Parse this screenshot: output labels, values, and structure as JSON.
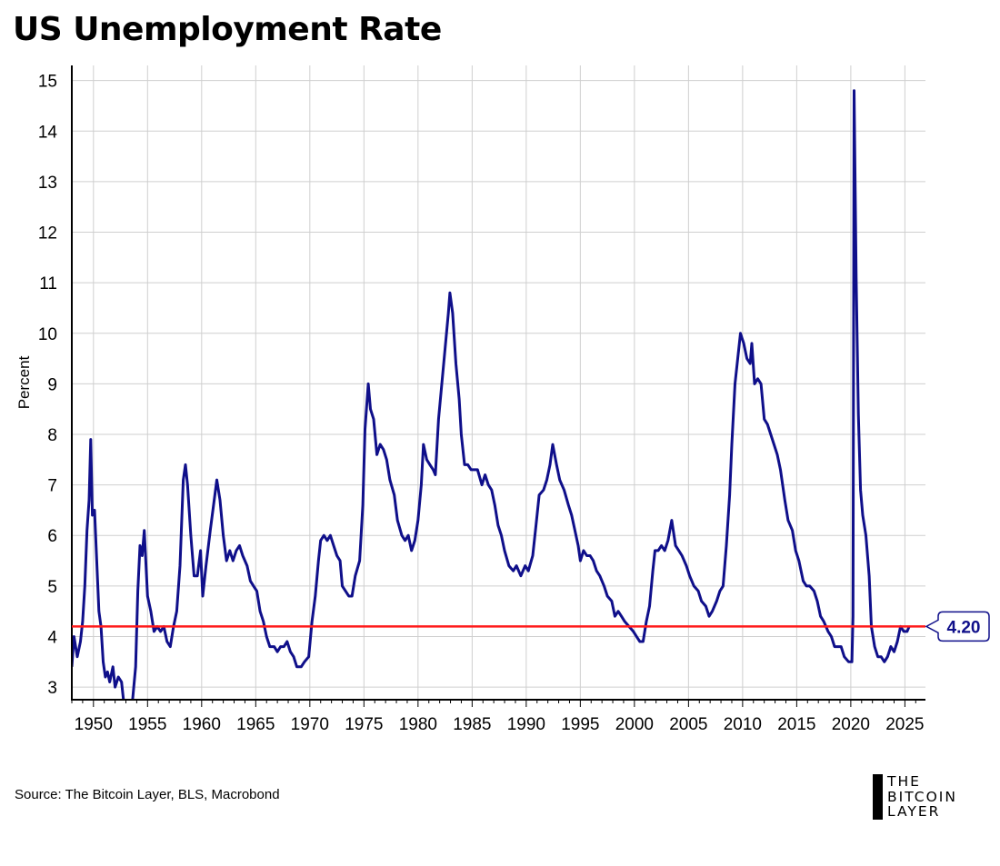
{
  "page": {
    "title": "US Unemployment Rate"
  },
  "footer": {
    "source": "Source: The Bitcoin Layer, BLS, Macrobond",
    "logo_lines": [
      "THE",
      "BITCOIN",
      "LAYER"
    ]
  },
  "chart_data": {
    "type": "line",
    "title": "US Unemployment Rate",
    "xlabel": "",
    "ylabel": "Percent",
    "xlim": [
      1948,
      2026.9
    ],
    "ylim": [
      2.75,
      15.3
    ],
    "x_ticks": [
      1950,
      1955,
      1960,
      1965,
      1970,
      1975,
      1980,
      1985,
      1990,
      1995,
      2000,
      2005,
      2010,
      2015,
      2020,
      2025
    ],
    "y_ticks": [
      3,
      4,
      5,
      6,
      7,
      8,
      9,
      10,
      11,
      12,
      13,
      14,
      15
    ],
    "grid": true,
    "colors": {
      "series": "#0f0f8a",
      "reference": "#ff1a1a",
      "label_border": "#0f0f8a",
      "label_text": "#0f0f8a"
    },
    "reference_line": {
      "value": 4.2,
      "label": "4.20"
    },
    "series": [
      {
        "values": [
          [
            1948.0,
            3.4
          ],
          [
            1948.2,
            4.0
          ],
          [
            1948.5,
            3.6
          ],
          [
            1948.8,
            3.9
          ],
          [
            1949.0,
            4.3
          ],
          [
            1949.2,
            5.0
          ],
          [
            1949.4,
            6.1
          ],
          [
            1949.6,
            6.7
          ],
          [
            1949.75,
            7.9
          ],
          [
            1949.9,
            6.4
          ],
          [
            1950.1,
            6.5
          ],
          [
            1950.3,
            5.5
          ],
          [
            1950.5,
            4.5
          ],
          [
            1950.7,
            4.2
          ],
          [
            1950.9,
            3.5
          ],
          [
            1951.1,
            3.2
          ],
          [
            1951.3,
            3.3
          ],
          [
            1951.5,
            3.1
          ],
          [
            1951.8,
            3.4
          ],
          [
            1952.0,
            3.0
          ],
          [
            1952.3,
            3.2
          ],
          [
            1952.6,
            3.1
          ],
          [
            1952.8,
            2.7
          ],
          [
            1953.6,
            2.7
          ],
          [
            1953.9,
            3.4
          ],
          [
            1954.1,
            4.9
          ],
          [
            1954.3,
            5.8
          ],
          [
            1954.5,
            5.6
          ],
          [
            1954.7,
            6.1
          ],
          [
            1955.0,
            4.8
          ],
          [
            1955.3,
            4.5
          ],
          [
            1955.6,
            4.1
          ],
          [
            1955.9,
            4.2
          ],
          [
            1956.2,
            4.1
          ],
          [
            1956.5,
            4.2
          ],
          [
            1956.8,
            3.9
          ],
          [
            1957.1,
            3.8
          ],
          [
            1957.4,
            4.2
          ],
          [
            1957.7,
            4.5
          ],
          [
            1958.0,
            5.4
          ],
          [
            1958.3,
            7.1
          ],
          [
            1958.5,
            7.4
          ],
          [
            1958.7,
            7.0
          ],
          [
            1959.0,
            6.0
          ],
          [
            1959.3,
            5.2
          ],
          [
            1959.6,
            5.2
          ],
          [
            1959.9,
            5.7
          ],
          [
            1960.1,
            4.8
          ],
          [
            1960.4,
            5.4
          ],
          [
            1960.8,
            6.1
          ],
          [
            1961.1,
            6.6
          ],
          [
            1961.4,
            7.1
          ],
          [
            1961.7,
            6.7
          ],
          [
            1962.0,
            6.0
          ],
          [
            1962.3,
            5.5
          ],
          [
            1962.6,
            5.7
          ],
          [
            1962.9,
            5.5
          ],
          [
            1963.2,
            5.7
          ],
          [
            1963.5,
            5.8
          ],
          [
            1963.8,
            5.6
          ],
          [
            1964.2,
            5.4
          ],
          [
            1964.5,
            5.1
          ],
          [
            1964.8,
            5.0
          ],
          [
            1965.1,
            4.9
          ],
          [
            1965.4,
            4.5
          ],
          [
            1965.7,
            4.3
          ],
          [
            1966.0,
            4.0
          ],
          [
            1966.3,
            3.8
          ],
          [
            1966.7,
            3.8
          ],
          [
            1967.0,
            3.7
          ],
          [
            1967.3,
            3.8
          ],
          [
            1967.6,
            3.8
          ],
          [
            1967.9,
            3.9
          ],
          [
            1968.2,
            3.7
          ],
          [
            1968.5,
            3.6
          ],
          [
            1968.8,
            3.4
          ],
          [
            1969.2,
            3.4
          ],
          [
            1969.5,
            3.5
          ],
          [
            1969.9,
            3.6
          ],
          [
            1970.2,
            4.3
          ],
          [
            1970.5,
            4.8
          ],
          [
            1970.8,
            5.5
          ],
          [
            1971.0,
            5.9
          ],
          [
            1971.3,
            6.0
          ],
          [
            1971.6,
            5.9
          ],
          [
            1971.9,
            6.0
          ],
          [
            1972.2,
            5.8
          ],
          [
            1972.5,
            5.6
          ],
          [
            1972.8,
            5.5
          ],
          [
            1973.0,
            5.0
          ],
          [
            1973.3,
            4.9
          ],
          [
            1973.6,
            4.8
          ],
          [
            1973.9,
            4.8
          ],
          [
            1974.2,
            5.2
          ],
          [
            1974.6,
            5.5
          ],
          [
            1974.9,
            6.6
          ],
          [
            1975.1,
            8.1
          ],
          [
            1975.4,
            9.0
          ],
          [
            1975.6,
            8.5
          ],
          [
            1975.9,
            8.3
          ],
          [
            1976.2,
            7.6
          ],
          [
            1976.5,
            7.8
          ],
          [
            1976.8,
            7.7
          ],
          [
            1977.1,
            7.5
          ],
          [
            1977.4,
            7.1
          ],
          [
            1977.8,
            6.8
          ],
          [
            1978.1,
            6.3
          ],
          [
            1978.5,
            6.0
          ],
          [
            1978.8,
            5.9
          ],
          [
            1979.1,
            6.0
          ],
          [
            1979.4,
            5.7
          ],
          [
            1979.7,
            5.9
          ],
          [
            1980.0,
            6.3
          ],
          [
            1980.3,
            7.0
          ],
          [
            1980.5,
            7.8
          ],
          [
            1980.8,
            7.5
          ],
          [
            1981.1,
            7.4
          ],
          [
            1981.4,
            7.3
          ],
          [
            1981.6,
            7.2
          ],
          [
            1981.9,
            8.3
          ],
          [
            1982.2,
            9.0
          ],
          [
            1982.5,
            9.7
          ],
          [
            1982.8,
            10.4
          ],
          [
            1982.95,
            10.8
          ],
          [
            1983.2,
            10.4
          ],
          [
            1983.5,
            9.4
          ],
          [
            1983.8,
            8.7
          ],
          [
            1984.0,
            8.0
          ],
          [
            1984.3,
            7.4
          ],
          [
            1984.6,
            7.4
          ],
          [
            1984.9,
            7.3
          ],
          [
            1985.2,
            7.3
          ],
          [
            1985.5,
            7.3
          ],
          [
            1985.9,
            7.0
          ],
          [
            1986.2,
            7.2
          ],
          [
            1986.5,
            7.0
          ],
          [
            1986.8,
            6.9
          ],
          [
            1987.1,
            6.6
          ],
          [
            1987.4,
            6.2
          ],
          [
            1987.7,
            6.0
          ],
          [
            1988.0,
            5.7
          ],
          [
            1988.4,
            5.4
          ],
          [
            1988.8,
            5.3
          ],
          [
            1989.1,
            5.4
          ],
          [
            1989.5,
            5.2
          ],
          [
            1989.9,
            5.4
          ],
          [
            1990.2,
            5.3
          ],
          [
            1990.6,
            5.6
          ],
          [
            1990.9,
            6.2
          ],
          [
            1991.2,
            6.8
          ],
          [
            1991.6,
            6.9
          ],
          [
            1991.9,
            7.1
          ],
          [
            1992.2,
            7.4
          ],
          [
            1992.45,
            7.8
          ],
          [
            1992.8,
            7.4
          ],
          [
            1993.1,
            7.1
          ],
          [
            1993.5,
            6.9
          ],
          [
            1993.9,
            6.6
          ],
          [
            1994.2,
            6.4
          ],
          [
            1994.5,
            6.1
          ],
          [
            1994.8,
            5.8
          ],
          [
            1995.0,
            5.5
          ],
          [
            1995.3,
            5.7
          ],
          [
            1995.6,
            5.6
          ],
          [
            1995.9,
            5.6
          ],
          [
            1996.2,
            5.5
          ],
          [
            1996.5,
            5.3
          ],
          [
            1996.8,
            5.2
          ],
          [
            1997.2,
            5.0
          ],
          [
            1997.5,
            4.8
          ],
          [
            1997.9,
            4.7
          ],
          [
            1998.2,
            4.4
          ],
          [
            1998.5,
            4.5
          ],
          [
            1998.8,
            4.4
          ],
          [
            1999.1,
            4.3
          ],
          [
            1999.5,
            4.2
          ],
          [
            1999.9,
            4.1
          ],
          [
            2000.2,
            4.0
          ],
          [
            2000.5,
            3.9
          ],
          [
            2000.8,
            3.9
          ],
          [
            2001.1,
            4.3
          ],
          [
            2001.4,
            4.6
          ],
          [
            2001.7,
            5.3
          ],
          [
            2001.9,
            5.7
          ],
          [
            2002.2,
            5.7
          ],
          [
            2002.5,
            5.8
          ],
          [
            2002.8,
            5.7
          ],
          [
            2003.1,
            5.9
          ],
          [
            2003.45,
            6.3
          ],
          [
            2003.8,
            5.8
          ],
          [
            2004.1,
            5.7
          ],
          [
            2004.4,
            5.6
          ],
          [
            2004.8,
            5.4
          ],
          [
            2005.1,
            5.2
          ],
          [
            2005.5,
            5.0
          ],
          [
            2005.9,
            4.9
          ],
          [
            2006.2,
            4.7
          ],
          [
            2006.6,
            4.6
          ],
          [
            2006.9,
            4.4
          ],
          [
            2007.2,
            4.5
          ],
          [
            2007.6,
            4.7
          ],
          [
            2007.9,
            4.9
          ],
          [
            2008.2,
            5.0
          ],
          [
            2008.5,
            5.8
          ],
          [
            2008.8,
            6.8
          ],
          [
            2009.0,
            7.8
          ],
          [
            2009.3,
            9.0
          ],
          [
            2009.6,
            9.6
          ],
          [
            2009.8,
            10.0
          ],
          [
            2010.1,
            9.8
          ],
          [
            2010.4,
            9.5
          ],
          [
            2010.7,
            9.4
          ],
          [
            2010.85,
            9.8
          ],
          [
            2011.1,
            9.0
          ],
          [
            2011.4,
            9.1
          ],
          [
            2011.7,
            9.0
          ],
          [
            2012.0,
            8.3
          ],
          [
            2012.3,
            8.2
          ],
          [
            2012.6,
            8.0
          ],
          [
            2012.9,
            7.8
          ],
          [
            2013.2,
            7.6
          ],
          [
            2013.5,
            7.3
          ],
          [
            2013.9,
            6.7
          ],
          [
            2014.2,
            6.3
          ],
          [
            2014.6,
            6.1
          ],
          [
            2014.9,
            5.7
          ],
          [
            2015.2,
            5.5
          ],
          [
            2015.6,
            5.1
          ],
          [
            2015.9,
            5.0
          ],
          [
            2016.2,
            5.0
          ],
          [
            2016.6,
            4.9
          ],
          [
            2016.9,
            4.7
          ],
          [
            2017.2,
            4.4
          ],
          [
            2017.5,
            4.3
          ],
          [
            2017.9,
            4.1
          ],
          [
            2018.2,
            4.0
          ],
          [
            2018.5,
            3.8
          ],
          [
            2018.8,
            3.8
          ],
          [
            2019.1,
            3.8
          ],
          [
            2019.4,
            3.6
          ],
          [
            2019.8,
            3.5
          ],
          [
            2020.1,
            3.5
          ],
          [
            2020.2,
            4.4
          ],
          [
            2020.3,
            14.8
          ],
          [
            2020.5,
            11.1
          ],
          [
            2020.7,
            8.4
          ],
          [
            2020.9,
            6.9
          ],
          [
            2021.1,
            6.4
          ],
          [
            2021.4,
            6.0
          ],
          [
            2021.7,
            5.2
          ],
          [
            2021.9,
            4.2
          ],
          [
            2022.2,
            3.8
          ],
          [
            2022.5,
            3.6
          ],
          [
            2022.8,
            3.6
          ],
          [
            2023.1,
            3.5
          ],
          [
            2023.4,
            3.6
          ],
          [
            2023.7,
            3.8
          ],
          [
            2024.0,
            3.7
          ],
          [
            2024.3,
            3.9
          ],
          [
            2024.6,
            4.2
          ],
          [
            2024.9,
            4.1
          ],
          [
            2025.2,
            4.1
          ],
          [
            2025.4,
            4.2
          ]
        ]
      }
    ]
  }
}
